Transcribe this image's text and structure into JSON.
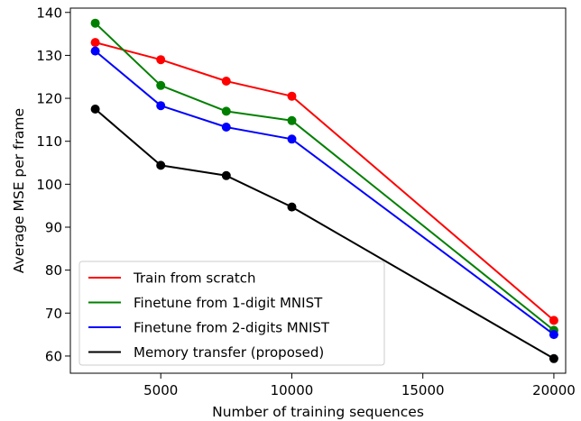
{
  "chart_data": {
    "type": "line",
    "title": "",
    "xlabel": "Number of training sequences",
    "ylabel": "Average MSE per frame",
    "x": [
      2500,
      5000,
      7500,
      10000,
      20000
    ],
    "xlim": [
      1550,
      20450
    ],
    "ylim": [
      56,
      141
    ],
    "xticks": [
      5000,
      10000,
      15000,
      20000
    ],
    "yticks": [
      60,
      70,
      80,
      90,
      100,
      110,
      120,
      130,
      140
    ],
    "grid": false,
    "legend_position": "lower-left",
    "series": [
      {
        "name": "Train from scratch",
        "color": "#ff0000",
        "values": [
          133.0,
          129.0,
          124.0,
          120.5,
          68.3
        ]
      },
      {
        "name": "Finetune from 1-digit MNIST",
        "color": "#008000",
        "values": [
          137.5,
          123.0,
          117.0,
          114.8,
          66.0
        ]
      },
      {
        "name": "Finetune from 2-digits MNIST",
        "color": "#0000ff",
        "values": [
          131.0,
          118.3,
          113.3,
          110.5,
          65.0
        ]
      },
      {
        "name": "Memory transfer (proposed)",
        "color": "#000000",
        "values": [
          117.5,
          104.4,
          102.0,
          94.7,
          59.4
        ]
      }
    ]
  }
}
